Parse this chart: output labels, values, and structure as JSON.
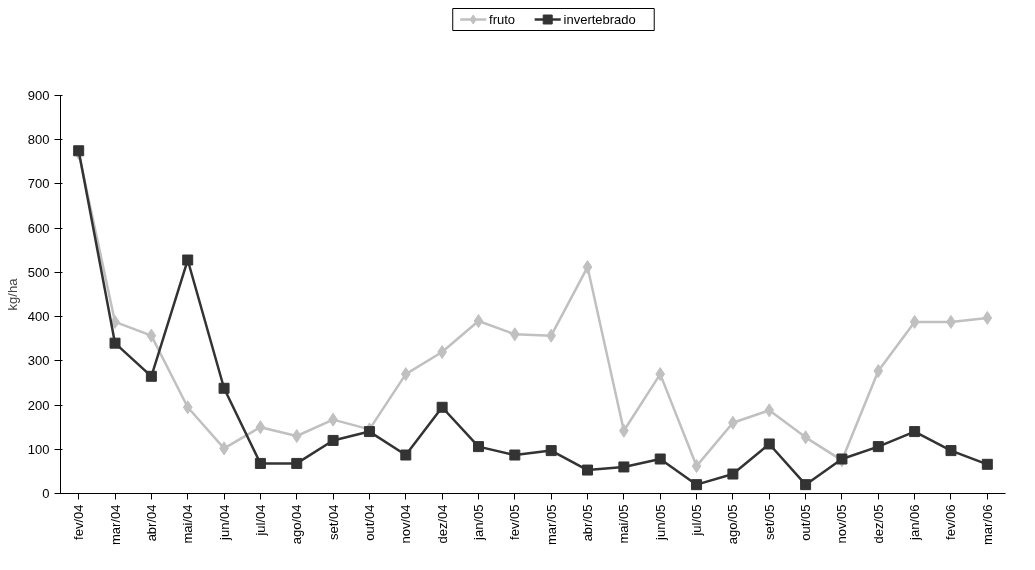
{
  "chart_data": {
    "type": "line",
    "ylabel": "kg/ha",
    "categories": [
      "fev/04",
      "mar/04",
      "abr/04",
      "mai/04",
      "jun/04",
      "jul/04",
      "ago/04",
      "set/04",
      "out/04",
      "nov/04",
      "dez/04",
      "jan/05",
      "fev/05",
      "mar/05",
      "abr/05",
      "mai/05",
      "jun/05",
      "jul/05",
      "ago/05",
      "set/05",
      "out/05",
      "nov/05",
      "dez/05",
      "jan/06",
      "fev/06",
      "mar/06"
    ],
    "series": [
      {
        "name": "fruto",
        "color": "#c0c0c0",
        "marker": "diamond",
        "values": [
          770,
          388,
          357,
          195,
          102,
          150,
          130,
          167,
          145,
          270,
          320,
          390,
          360,
          357,
          512,
          142,
          270,
          62,
          160,
          188,
          127,
          75,
          277,
          388,
          388,
          397
        ]
      },
      {
        "name": "invertebrado",
        "color": "#333333",
        "marker": "square",
        "values": [
          775,
          340,
          265,
          528,
          238,
          68,
          68,
          120,
          140,
          87,
          195,
          106,
          87,
          97,
          53,
          60,
          78,
          20,
          44,
          112,
          20,
          78,
          106,
          140,
          97,
          66
        ]
      }
    ],
    "ylim": [
      0,
      900
    ],
    "yticks": [
      0,
      100,
      200,
      300,
      400,
      500,
      600,
      700,
      800,
      900
    ],
    "grid": false,
    "legend": "top"
  }
}
